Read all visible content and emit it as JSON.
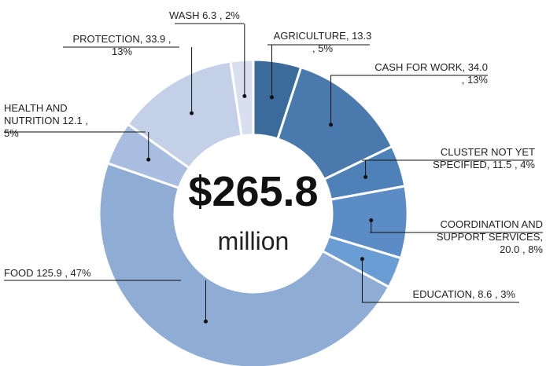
{
  "chart_data": {
    "type": "pie",
    "categories": [
      "AGRICULTURE,",
      "CASH FOR WORK,",
      "CLUSTER NOT YET SPECIFIED,",
      "COORDINATION AND SUPPORT SERVICES,",
      "EDUCATION,",
      "FOOD",
      "HEALTH AND NUTRITION",
      "PROTECTION,",
      "WASH"
    ],
    "values": [
      13.3,
      34.0,
      11.5,
      20.0,
      8.6,
      125.9,
      12.1,
      33.9,
      6.3
    ],
    "value_labels": [
      "13.3 , 5%",
      "34.0 , 13%",
      "11.5 , 4%",
      "20.0 , 8%",
      "8.6 , 3%",
      "125.9 , 47%",
      "12.1 , 5%",
      "33.9 , 13%",
      "6.3 , 2%"
    ],
    "colors": [
      "#3b6b9b",
      "#4a79ae",
      "#4f81b9",
      "#5b8cc5",
      "#6a9dd3",
      "#8eacd4",
      "#a8bde0",
      "#c3d0e7",
      "#d8e0f0"
    ],
    "donut": true,
    "center_value": "$265.8",
    "center_unit": "million"
  }
}
